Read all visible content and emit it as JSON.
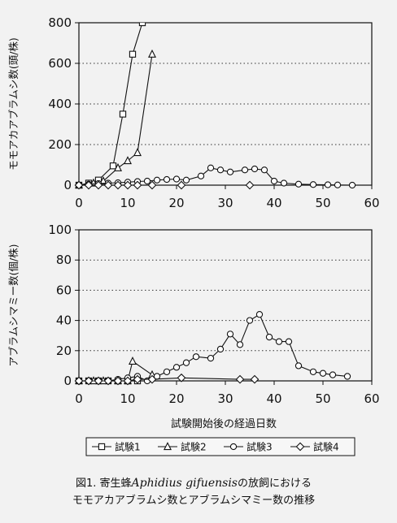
{
  "chart_data": [
    {
      "type": "line",
      "ylabel": "モモアカアブラムシ数(頭/株)",
      "xlim": [
        0,
        60
      ],
      "ylim": [
        0,
        800
      ],
      "xticks": [
        0,
        10,
        20,
        30,
        40,
        50,
        60
      ],
      "yticks": [
        0,
        200,
        400,
        600,
        800
      ],
      "grid": "horizontal dotted",
      "series": [
        {
          "name": "試験1",
          "marker": "square",
          "x": [
            0,
            2,
            4,
            7,
            9,
            11,
            13
          ],
          "y": [
            0,
            10,
            25,
            95,
            350,
            645,
            800
          ]
        },
        {
          "name": "試験2",
          "marker": "triangle",
          "x": [
            0,
            3,
            5,
            8,
            10,
            12,
            15
          ],
          "y": [
            0,
            10,
            20,
            85,
            120,
            160,
            645
          ]
        },
        {
          "name": "試験3",
          "marker": "circle",
          "x": [
            0,
            2,
            4,
            6,
            8,
            10,
            12,
            14,
            16,
            18,
            20,
            22,
            25,
            27,
            29,
            31,
            34,
            36,
            38,
            40,
            42,
            45,
            48,
            51,
            53,
            56
          ],
          "y": [
            0,
            5,
            8,
            10,
            12,
            15,
            18,
            20,
            25,
            28,
            30,
            25,
            45,
            85,
            75,
            65,
            75,
            80,
            75,
            20,
            10,
            5,
            3,
            2,
            1,
            0
          ]
        },
        {
          "name": "試験4",
          "marker": "diamond",
          "x": [
            0,
            2,
            4,
            6,
            8,
            10,
            12,
            15,
            21,
            35
          ],
          "y": [
            0,
            0,
            0,
            0,
            0,
            0,
            0,
            0,
            0,
            0
          ]
        }
      ]
    },
    {
      "type": "line",
      "ylabel": "アブラムシマミー数(個/株)",
      "xlabel": "試験開始後の経過日数",
      "xlim": [
        0,
        60
      ],
      "ylim": [
        0,
        100
      ],
      "xticks": [
        0,
        10,
        20,
        30,
        40,
        50,
        60
      ],
      "yticks": [
        0,
        20,
        40,
        60,
        80,
        100
      ],
      "grid": "horizontal dotted",
      "series": [
        {
          "name": "試験1",
          "marker": "square",
          "x": [
            0,
            2,
            4,
            6,
            8,
            10,
            12
          ],
          "y": [
            0,
            0,
            0,
            0,
            0,
            0,
            0
          ]
        },
        {
          "name": "試験2",
          "marker": "triangle",
          "x": [
            0,
            3,
            5,
            8,
            10,
            11,
            15
          ],
          "y": [
            0,
            0,
            0,
            0,
            0,
            13,
            4
          ]
        },
        {
          "name": "試験3",
          "marker": "circle",
          "x": [
            0,
            2,
            4,
            6,
            8,
            10,
            12,
            14,
            16,
            18,
            20,
            22,
            24,
            27,
            29,
            31,
            33,
            35,
            37,
            39,
            41,
            43,
            45,
            48,
            50,
            52,
            55
          ],
          "y": [
            0,
            0,
            0,
            0,
            1,
            2,
            3,
            0,
            3,
            6,
            9,
            12,
            16,
            15,
            21,
            31,
            24,
            40,
            44,
            29,
            26,
            26,
            10,
            6,
            5,
            4,
            3
          ]
        },
        {
          "name": "試験4",
          "marker": "diamond",
          "x": [
            0,
            2,
            4,
            6,
            8,
            10,
            12,
            15,
            21,
            33,
            36
          ],
          "y": [
            0,
            0,
            0,
            0,
            0,
            0,
            1,
            1,
            2,
            1,
            1
          ]
        }
      ]
    }
  ],
  "legend": [
    "試験1",
    "試験2",
    "試験3",
    "試験4"
  ],
  "caption": {
    "prefix": "図1. 寄生蜂",
    "species": "Aphidius gifuensis",
    "suffix": "の放飼における",
    "line2": "モモアカアブラムシ数とアブラムシマミー数の推移"
  }
}
